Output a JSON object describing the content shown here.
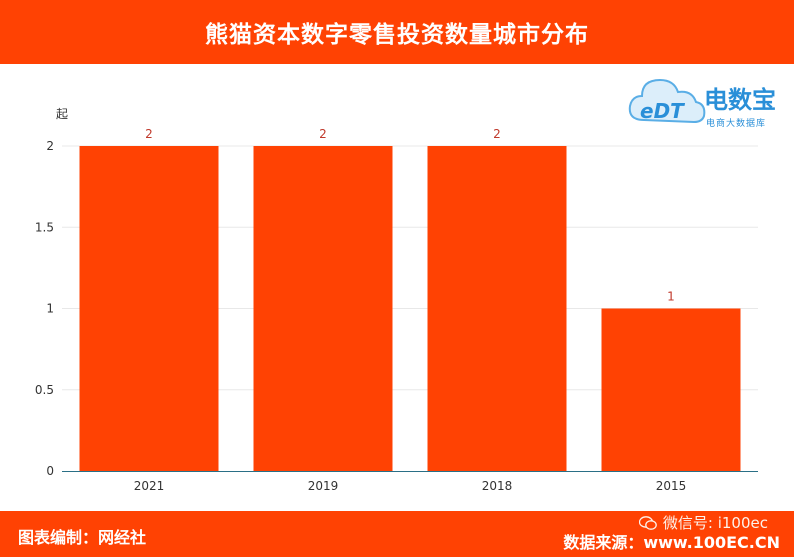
{
  "header": {
    "title": "熊猫资本数字零售投资数量城市分布"
  },
  "footer": {
    "left": "图表编制：网经社",
    "right": "数据来源：www.100EC.CN",
    "wechat": "微信号: i100ec"
  },
  "logo": {
    "name": "电数宝",
    "sub": "电商大数据库",
    "mark": "eDT"
  },
  "colors": {
    "banner": "#ff4203",
    "bar": "#ff4203",
    "label": "#c0392b",
    "axis": "#2a6f86"
  },
  "chart_data": {
    "type": "bar",
    "categories": [
      "2021",
      "2019",
      "2018",
      "2015"
    ],
    "values": [
      2,
      2,
      2,
      1
    ],
    "ylabel": "起",
    "ylim": [
      0,
      2
    ],
    "yticks": [
      "0",
      "0.5",
      "1",
      "1.5",
      "2"
    ],
    "grid": true,
    "data_labels": [
      "2",
      "2",
      "2",
      "1"
    ]
  }
}
